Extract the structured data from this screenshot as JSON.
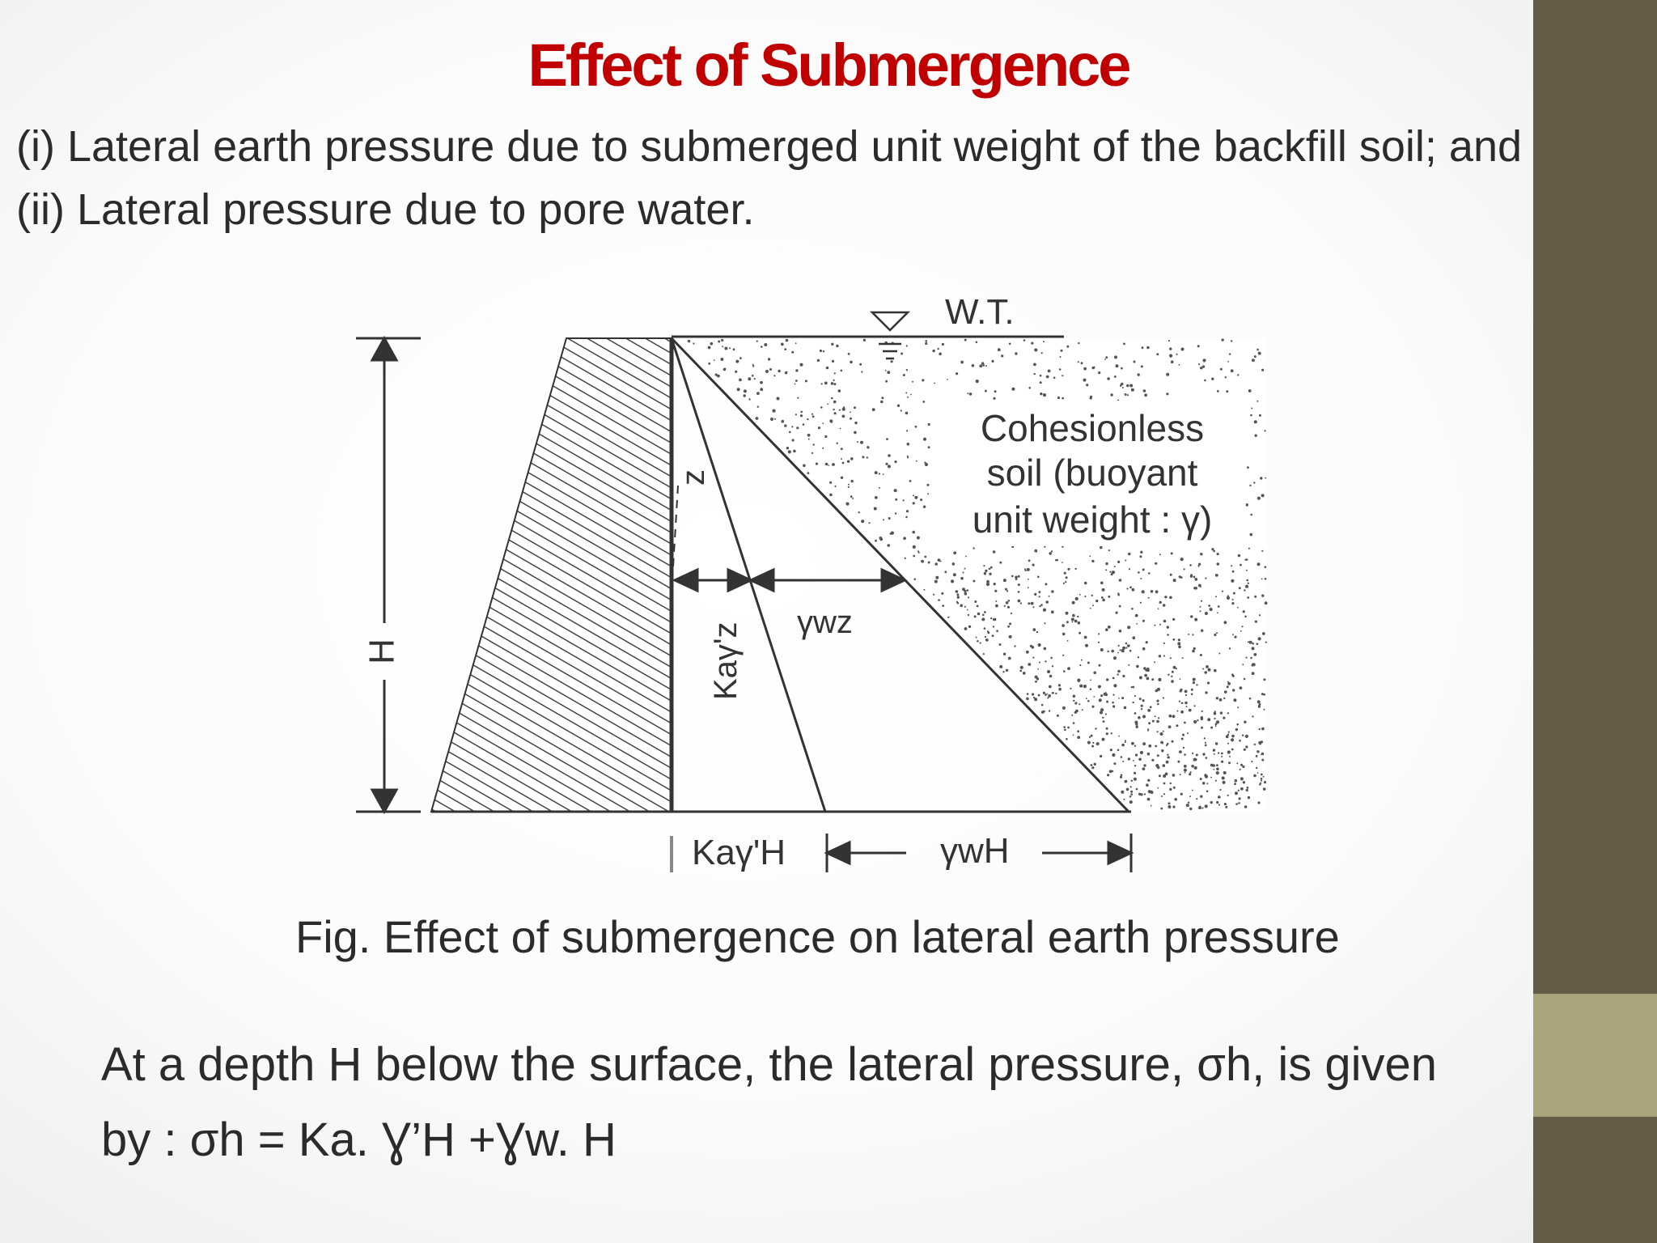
{
  "title": "Effect of Submergence",
  "intro": {
    "line1": "(i) Lateral earth pressure due to submerged unit weight of the backfill soil; and",
    "line2": "(ii) Lateral pressure due to pore water."
  },
  "diagram": {
    "water_table_label": "W.T.",
    "soil_label_line1": "Cohesionless",
    "soil_label_line2": "soil (buoyant",
    "soil_label_line3": "unit weight : γ)",
    "height_label": "H",
    "depth_label": "z",
    "kaz_label": "Kaγ'z",
    "wz_label": "γwz",
    "kah_label": "Kaγ'H",
    "wh_label": "γwH"
  },
  "caption": "Fig. Effect of submergence on lateral earth pressure",
  "body": {
    "line1": "At a depth H below the surface, the lateral pressure, σh, is given",
    "line2": "by : σh = Ka. Ɣ’H +Ɣw. H"
  },
  "colors": {
    "title": "#c00000",
    "sidebar": "#655c48",
    "sidebar_accent": "#aaa47a"
  }
}
